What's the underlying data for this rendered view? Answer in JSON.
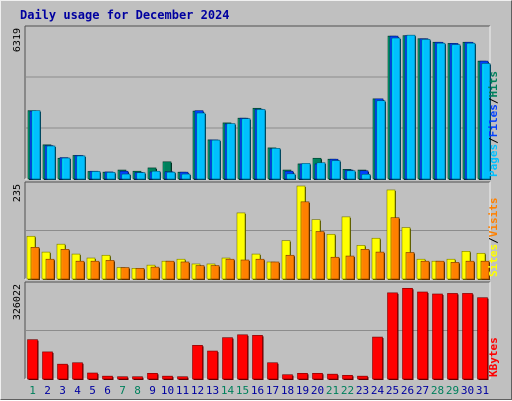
{
  "title": "Daily usage for December 2024",
  "colors": {
    "title": "#0000a0",
    "hits": "#00805c",
    "files": "#0040ff",
    "pages": "#00c0ff",
    "visits": "#ff8000",
    "sites": "#ffff00",
    "kbytes": "#ff0000",
    "weekday_label": "#0000a0",
    "weekend_label": "#00805c",
    "panel_bg": "#c0c0c0"
  },
  "chart_data": {
    "type": "bar",
    "x": [
      "1",
      "2",
      "3",
      "4",
      "5",
      "6",
      "7",
      "8",
      "9",
      "10",
      "11",
      "12",
      "13",
      "14",
      "15",
      "16",
      "17",
      "18",
      "19",
      "20",
      "21",
      "22",
      "23",
      "24",
      "25",
      "26",
      "27",
      "28",
      "29",
      "30",
      "31"
    ],
    "weekend_days": [
      "1",
      "7",
      "8",
      "14",
      "15",
      "21",
      "22",
      "28",
      "29"
    ],
    "panels": [
      {
        "id": "hits-files-pages",
        "max_label": "6319",
        "ylim": [
          0,
          6319
        ],
        "legend": [
          "Pages",
          "Files",
          "Hits"
        ],
        "series": [
          {
            "name": "Hits",
            "values": [
              2900,
              1450,
              880,
              1000,
              320,
              290,
              380,
              330,
              470,
              730,
              290,
              2880,
              1660,
              2380,
              2580,
              3000,
              1320,
              380,
              640,
              880,
              840,
              410,
              380,
              3400,
              6060,
              6080,
              5950,
              5800,
              5750,
              5800,
              5000
            ]
          },
          {
            "name": "Files",
            "values": [
              2880,
              1420,
              910,
              1000,
              330,
              300,
              330,
              280,
              300,
              310,
              290,
              2900,
              1660,
              2340,
              2580,
              2960,
              1280,
              330,
              640,
              640,
              840,
              380,
              350,
              3400,
              6060,
              6080,
              5950,
              5800,
              5750,
              5800,
              5000
            ]
          },
          {
            "name": "Pages",
            "values": [
              2900,
              1400,
              890,
              980,
              320,
              280,
              210,
              270,
              330,
              290,
              210,
              2800,
              1650,
              2350,
              2560,
              2950,
              1300,
              220,
              660,
              690,
              780,
              350,
              200,
              3320,
              5980,
              6100,
              5920,
              5760,
              5700,
              5760,
              4900
            ]
          }
        ]
      },
      {
        "id": "sites-visits",
        "max_label": "235",
        "ylim": [
          0,
          235
        ],
        "legend": [
          "Sites",
          "Visits"
        ],
        "series": [
          {
            "name": "Sites",
            "values": [
              108,
              68,
              88,
              63,
              53,
              60,
              29,
              27,
              35,
              45,
              50,
              38,
              38,
              53,
              167,
              63,
              43,
              97,
              235,
              150,
              113,
              157,
              85,
              103,
              225,
              130,
              50,
              45,
              50,
              70,
              65
            ]
          },
          {
            "name": "Visits",
            "values": [
              80,
              50,
              75,
              45,
              45,
              47,
              29,
              27,
              30,
              45,
              43,
              34,
              34,
              50,
              48,
              50,
              43,
              60,
              195,
              120,
              55,
              58,
              75,
              68,
              155,
              67,
              45,
              45,
              42,
              45,
              45
            ]
          }
        ]
      },
      {
        "id": "kbytes",
        "max_label": "326022",
        "ylim": [
          0,
          326022
        ],
        "legend": [
          "KBytes"
        ],
        "series": [
          {
            "name": "KBytes",
            "values": [
              138000,
              95000,
              52000,
              57000,
              21000,
              10000,
              8000,
              8000,
              20000,
              10000,
              8000,
              118000,
              98000,
              145000,
              155000,
              153000,
              57000,
              15000,
              20000,
              20000,
              17000,
              13000,
              10000,
              147000,
              302000,
              318000,
              305000,
              298000,
              300000,
              300000,
              285000
            ]
          }
        ]
      }
    ]
  }
}
